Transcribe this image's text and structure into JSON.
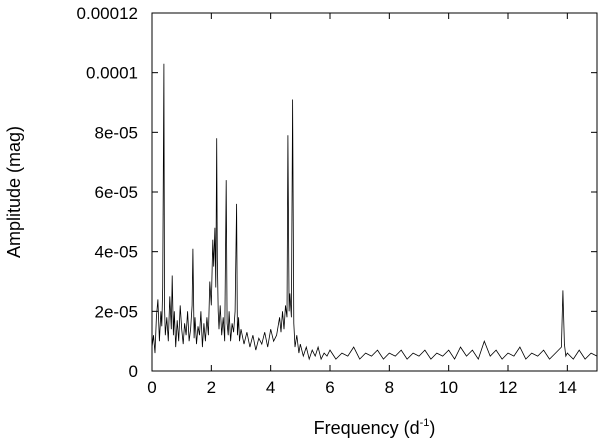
{
  "chart_data": {
    "type": "line",
    "title": "",
    "xlabel": {
      "text": "Frequency (d",
      "superscript": "-1",
      "suffix": ")"
    },
    "ylabel": "Amplitude (mag)",
    "xlim": [
      0,
      15
    ],
    "ylim": [
      0,
      0.00012
    ],
    "x_ticks": [
      {
        "value": 0,
        "label": "0"
      },
      {
        "value": 2,
        "label": "2"
      },
      {
        "value": 4,
        "label": "4"
      },
      {
        "value": 6,
        "label": "6"
      },
      {
        "value": 8,
        "label": "8"
      },
      {
        "value": 10,
        "label": "10"
      },
      {
        "value": 12,
        "label": "12"
      },
      {
        "value": 14,
        "label": "14"
      }
    ],
    "y_ticks": [
      {
        "value": 0,
        "label": "0"
      },
      {
        "value": 2e-05,
        "label": "2e-05"
      },
      {
        "value": 4e-05,
        "label": "4e-05"
      },
      {
        "value": 6e-05,
        "label": "6e-05"
      },
      {
        "value": 8e-05,
        "label": "8e-05"
      },
      {
        "value": 0.0001,
        "label": "0.0001"
      },
      {
        "value": 0.00012,
        "label": "0.00012"
      }
    ],
    "grid": false,
    "legend": "none",
    "line_color": "#000000",
    "series": [
      {
        "x": [
          0.0,
          0.05,
          0.1,
          0.15,
          0.2,
          0.25,
          0.3,
          0.33,
          0.36,
          0.4,
          0.42,
          0.45,
          0.5,
          0.55,
          0.6,
          0.65,
          0.68,
          0.72,
          0.75,
          0.8,
          0.85,
          0.9,
          0.95,
          1.0,
          1.05,
          1.1,
          1.15,
          1.2,
          1.25,
          1.3,
          1.35,
          1.38,
          1.42,
          1.45,
          1.5,
          1.55,
          1.6,
          1.65,
          1.7,
          1.75,
          1.8,
          1.85,
          1.9,
          1.95,
          2.0,
          2.05,
          2.08,
          2.12,
          2.15,
          2.18,
          2.2,
          2.23,
          2.26,
          2.3,
          2.35,
          2.4,
          2.45,
          2.5,
          2.53,
          2.57,
          2.6,
          2.65,
          2.7,
          2.75,
          2.8,
          2.85,
          2.88,
          2.92,
          2.95,
          3.0,
          3.1,
          3.2,
          3.3,
          3.4,
          3.5,
          3.6,
          3.7,
          3.8,
          3.9,
          4.0,
          4.1,
          4.2,
          4.3,
          4.35,
          4.4,
          4.45,
          4.5,
          4.55,
          4.58,
          4.62,
          4.65,
          4.7,
          4.74,
          4.78,
          4.82,
          4.88,
          4.95,
          5.0,
          5.1,
          5.2,
          5.3,
          5.4,
          5.5,
          5.6,
          5.7,
          5.8,
          5.9,
          6.0,
          6.2,
          6.4,
          6.6,
          6.8,
          7.0,
          7.2,
          7.4,
          7.6,
          7.8,
          8.0,
          8.2,
          8.4,
          8.6,
          8.8,
          9.0,
          9.2,
          9.4,
          9.6,
          9.8,
          10.0,
          10.2,
          10.4,
          10.6,
          10.8,
          11.0,
          11.2,
          11.4,
          11.6,
          11.8,
          12.0,
          12.2,
          12.4,
          12.6,
          12.8,
          13.0,
          13.2,
          13.4,
          13.6,
          13.8,
          13.85,
          13.9,
          13.95,
          14.0,
          14.2,
          14.4,
          14.6,
          14.8,
          15.0
        ],
        "y": [
          8e-06,
          1.2e-05,
          6e-06,
          1.8e-05,
          2.4e-05,
          1e-05,
          2e-05,
          1.5e-05,
          2.8e-05,
          0.000103,
          2.2e-05,
          1.2e-05,
          1.8e-05,
          1e-05,
          2.5e-05,
          1.4e-05,
          3.2e-05,
          1.2e-05,
          2e-05,
          8e-06,
          1.7e-05,
          1e-05,
          2.2e-05,
          1.4e-05,
          9e-06,
          1.6e-05,
          1.2e-05,
          2e-05,
          1e-05,
          1.4e-05,
          2.2e-05,
          4.1e-05,
          1.1e-05,
          1.8e-05,
          9e-06,
          1.5e-05,
          1.2e-05,
          2e-05,
          8e-06,
          1.6e-05,
          1e-05,
          1.8e-05,
          1.2e-05,
          3e-05,
          2.2e-05,
          4.4e-05,
          3.5e-05,
          4.8e-05,
          2.8e-05,
          7.8e-05,
          3.8e-05,
          2e-05,
          1.4e-05,
          2.2e-05,
          1.2e-05,
          1.8e-05,
          1e-05,
          6.4e-05,
          1.6e-05,
          1.2e-05,
          2e-05,
          1e-05,
          1.6e-05,
          1.3e-05,
          2e-05,
          5.6e-05,
          1.2e-05,
          1.8e-05,
          1e-05,
          1.4e-05,
          9e-06,
          1.3e-05,
          8e-06,
          1.2e-05,
          7e-06,
          1.1e-05,
          9e-06,
          1.3e-05,
          8e-06,
          1.4e-05,
          1e-05,
          1.2e-05,
          1.8e-05,
          1.3e-05,
          2e-05,
          1.4e-05,
          2.2e-05,
          1.8e-05,
          7.9e-05,
          2e-05,
          2.6e-05,
          1.8e-05,
          9.1e-05,
          1.6e-05,
          8e-06,
          1.2e-05,
          6e-06,
          9e-06,
          5e-06,
          8e-06,
          4e-06,
          7e-06,
          5e-06,
          8e-06,
          4e-06,
          6e-06,
          5e-06,
          7e-06,
          4e-06,
          6e-06,
          5e-06,
          8e-06,
          4e-06,
          6e-06,
          5e-06,
          7e-06,
          4e-06,
          6e-06,
          5e-06,
          7e-06,
          4e-06,
          6e-06,
          5e-06,
          7e-06,
          4e-06,
          6e-06,
          5e-06,
          7e-06,
          4e-06,
          8e-06,
          5e-06,
          7e-06,
          4e-06,
          1e-05,
          5e-06,
          7e-06,
          4e-06,
          6e-06,
          5e-06,
          8e-06,
          4e-06,
          6e-06,
          5e-06,
          7e-06,
          4e-06,
          6e-06,
          8e-06,
          2.7e-05,
          9e-06,
          5e-06,
          6e-06,
          4e-06,
          7e-06,
          4e-06,
          6e-06,
          5e-06
        ]
      }
    ]
  }
}
